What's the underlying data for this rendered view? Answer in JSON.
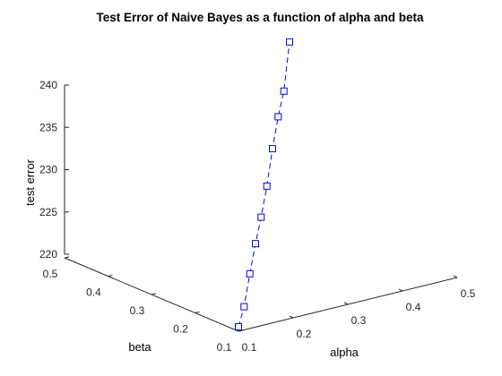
{
  "chart_data": {
    "type": "line",
    "projection": "3d",
    "title": "Test Error of Naive Bayes as a function of alpha and beta",
    "xlabel": "alpha",
    "ylabel": "beta",
    "zlabel": "test error",
    "xlim": [
      0.1,
      0.5
    ],
    "ylim": [
      0.1,
      0.5
    ],
    "zlim": [
      220,
      240
    ],
    "x_ticks": [
      "0.1",
      "0.2",
      "0.3",
      "0.4",
      "0.5"
    ],
    "y_ticks": [
      "0.1",
      "0.2",
      "0.3",
      "0.4",
      "0.5"
    ],
    "z_ticks": [
      "220",
      "225",
      "230",
      "235",
      "240"
    ],
    "grid": false,
    "legend": "none",
    "series": [
      {
        "color": "#0000ff",
        "line_style": "dashed",
        "marker": "square",
        "alpha": [
          0.1,
          0.1,
          0.1,
          0.1,
          0.1,
          0.1,
          0.1,
          0.1,
          0.1,
          0.1
        ],
        "beta": [
          0.1,
          0.1,
          0.1,
          0.1,
          0.1,
          0.1,
          0.1,
          0.1,
          0.1,
          0.1
        ],
        "test_error": [
          216.2,
          218.4,
          222.0,
          225.3,
          228.2,
          231.6,
          235.7,
          239.2,
          242.0,
          247.4
        ]
      }
    ]
  }
}
